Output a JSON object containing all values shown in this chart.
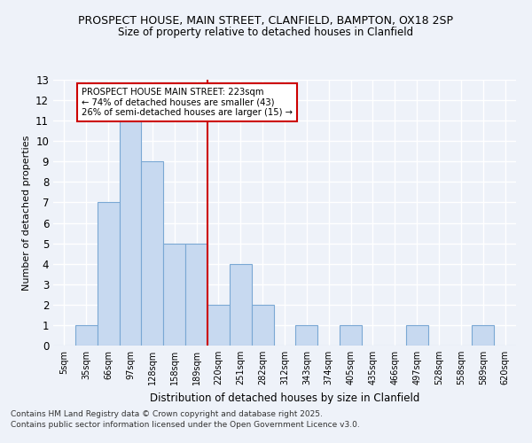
{
  "title1": "PROSPECT HOUSE, MAIN STREET, CLANFIELD, BAMPTON, OX18 2SP",
  "title2": "Size of property relative to detached houses in Clanfield",
  "xlabel": "Distribution of detached houses by size in Clanfield",
  "ylabel": "Number of detached properties",
  "categories": [
    "5sqm",
    "35sqm",
    "66sqm",
    "97sqm",
    "128sqm",
    "158sqm",
    "189sqm",
    "220sqm",
    "251sqm",
    "282sqm",
    "312sqm",
    "343sqm",
    "374sqm",
    "405sqm",
    "435sqm",
    "466sqm",
    "497sqm",
    "528sqm",
    "558sqm",
    "589sqm",
    "620sqm"
  ],
  "values": [
    0,
    1,
    7,
    11,
    9,
    5,
    5,
    2,
    4,
    2,
    0,
    1,
    0,
    1,
    0,
    0,
    1,
    0,
    0,
    1,
    0
  ],
  "bar_color": "#c7d9f0",
  "bar_edge_color": "#7aa8d4",
  "annotation_text_line1": "PROSPECT HOUSE MAIN STREET: 223sqm",
  "annotation_text_line2": "← 74% of detached houses are smaller (43)",
  "annotation_text_line3": "26% of semi-detached houses are larger (15) →",
  "annotation_box_color": "#ffffff",
  "annotation_box_edge": "#cc0000",
  "vline_color": "#cc0000",
  "vline_x": 6.5,
  "footer1": "Contains HM Land Registry data © Crown copyright and database right 2025.",
  "footer2": "Contains public sector information licensed under the Open Government Licence v3.0.",
  "background_color": "#eef2f9",
  "grid_color": "#ffffff",
  "ylim": [
    0,
    13
  ],
  "yticks": [
    0,
    1,
    2,
    3,
    4,
    5,
    6,
    7,
    8,
    9,
    10,
    11,
    12,
    13
  ]
}
